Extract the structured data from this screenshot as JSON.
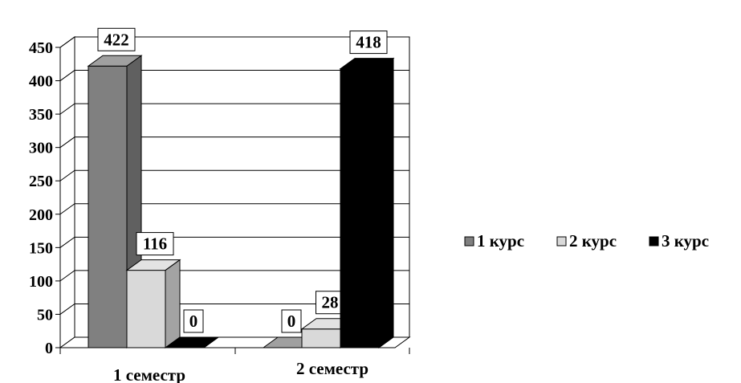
{
  "chart_data": {
    "type": "bar",
    "three_d": true,
    "categories": [
      "1 семестр",
      "2 семестр"
    ],
    "series": [
      {
        "name": "1 курс",
        "values": [
          422,
          0
        ],
        "color": "#808080"
      },
      {
        "name": "2 курс",
        "values": [
          116,
          28
        ],
        "color": "#d9d9d9"
      },
      {
        "name": "3 курс",
        "values": [
          0,
          418
        ],
        "color": "#000000"
      }
    ],
    "ylim": [
      0,
      450
    ],
    "yticks": [
      0,
      50,
      100,
      150,
      200,
      250,
      300,
      350,
      400,
      450
    ],
    "grid": true,
    "data_labels": true,
    "legend": "right",
    "title": "",
    "xlabel": "",
    "ylabel": ""
  }
}
